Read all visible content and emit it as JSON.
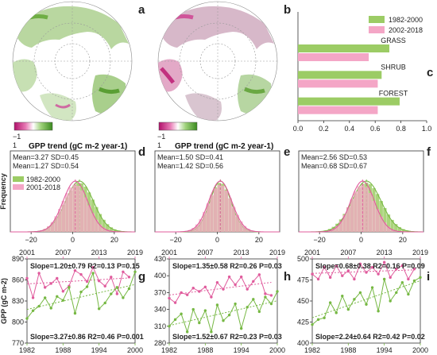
{
  "colors": {
    "green": "#76b843",
    "pink": "#e05c9d",
    "green_fill": "#9ccc65",
    "pink_fill": "#f4a6c6",
    "axis": "#333333"
  },
  "panel_labels": [
    "a",
    "b",
    "c",
    "d",
    "e",
    "f",
    "g",
    "h",
    "i"
  ],
  "maps": {
    "trend_title": "GPP trend (gC m-2 year-1)",
    "colorbar_min": "−1",
    "colorbar_max": "1"
  },
  "chart_data": [
    {
      "id": "c",
      "type": "bar",
      "orientation": "horizontal",
      "categories": [
        "GRASS",
        "SHRUB",
        "FOREST"
      ],
      "series": [
        {
          "name": "1982-2000",
          "values": [
            0.71,
            0.65,
            0.79
          ]
        },
        {
          "name": "2002-2018",
          "values": [
            0.55,
            0.62,
            0.62
          ]
        }
      ],
      "xlim": [
        0,
        1
      ],
      "xticks": [
        "0.0",
        "0.2",
        "0.4",
        "0.6",
        "0.8",
        "1.0"
      ],
      "legend": "top-right"
    },
    {
      "id": "d",
      "type": "area",
      "ylabel": "Frequency",
      "xticks": [
        "−20",
        "0",
        "20"
      ],
      "xlim": [
        -30,
        30
      ],
      "stats": [
        "Mean=3.27 SD=0.45",
        "Mean=1.27 SD=0.54"
      ],
      "series": [
        {
          "name": "1982-2000",
          "mean": 3.27,
          "spread": 7.0
        },
        {
          "name": "2001-2018",
          "mean": 1.27,
          "spread": 6.2
        }
      ],
      "legend": "left"
    },
    {
      "id": "e",
      "type": "area",
      "xticks": [
        "−20",
        "0",
        "20"
      ],
      "xlim": [
        -30,
        30
      ],
      "stats": [
        "Mean=1.50 SD=0.41",
        "Mean=1.42 SD=0.56"
      ],
      "series": [
        {
          "mean": 1.5,
          "spread": 5.3
        },
        {
          "mean": 1.42,
          "spread": 5.8
        }
      ]
    },
    {
      "id": "f",
      "type": "area",
      "xticks": [
        "−20",
        "0",
        "20"
      ],
      "xlim": [
        -30,
        30
      ],
      "stats": [
        "Mean=2.56 SD=0.53",
        "Mean=0.68 SD=0.67"
      ],
      "series": [
        {
          "mean": 2.56,
          "spread": 7.4
        },
        {
          "mean": 0.68,
          "spread": 6.0
        }
      ]
    },
    {
      "id": "g",
      "type": "line",
      "ylabel": "GPP (gC m-2)",
      "ylim": [
        770,
        900
      ],
      "yticks": [
        "770",
        "800",
        "830",
        "860",
        "890"
      ],
      "top_xticks": [
        "2001",
        "2007",
        "2013",
        "2019"
      ],
      "bottom_xticks": [
        "1982",
        "1988",
        "1994",
        "2000"
      ],
      "top_stats": "Slope=1.20±0.79  R2=0.13  P=0.15",
      "bottom_stats": "Slope=3.27±0.86  R2=0.46  P=0.001",
      "series": [
        {
          "x": [
            2001,
            2002,
            2003,
            2004,
            2005,
            2006,
            2007,
            2008,
            2009,
            2010,
            2011,
            2012,
            2013,
            2014,
            2015,
            2016,
            2017,
            2018
          ],
          "y": [
            870,
            840,
            878,
            856,
            862,
            870,
            850,
            858,
            882,
            876,
            865,
            887,
            866,
            858,
            872,
            846,
            880,
            872
          ]
        },
        {
          "x": [
            1982,
            1983,
            1984,
            1985,
            1986,
            1987,
            1988,
            1989,
            1990,
            1991,
            1992,
            1993,
            1994,
            1995,
            1996,
            1997,
            1998,
            1999,
            2000
          ],
          "y": [
            808,
            820,
            827,
            840,
            824,
            842,
            836,
            856,
            816,
            849,
            857,
            878,
            823,
            832,
            846,
            856,
            840,
            854,
            880
          ]
        }
      ]
    },
    {
      "id": "h",
      "type": "line",
      "ylim": [
        280,
        430
      ],
      "yticks": [
        "280",
        "310",
        "340",
        "370",
        "400",
        "430"
      ],
      "top_xticks": [
        "2001",
        "2007",
        "2013",
        "2019"
      ],
      "bottom_xticks": [
        "1982",
        "1988",
        "1994",
        "2000"
      ],
      "top_stats": "Slope=1.35±0.58  R2=0.26  P=0.03",
      "bottom_stats": "Slope=1.52±0.67  R2=0.23  P=0.03",
      "series": [
        {
          "x": [
            2001,
            2002,
            2003,
            2004,
            2005,
            2006,
            2007,
            2008,
            2009,
            2010,
            2011,
            2012,
            2013,
            2014,
            2015,
            2016,
            2017,
            2018
          ],
          "y": [
            360,
            352,
            370,
            366,
            378,
            372,
            380,
            362,
            388,
            376,
            398,
            384,
            398,
            376,
            390,
            402,
            368,
            365
          ]
        },
        {
          "x": [
            1982,
            1983,
            1984,
            1985,
            1986,
            1987,
            1988,
            1989,
            1990,
            1991,
            1992,
            1993,
            1994,
            1995,
            1996,
            1997,
            1998,
            1999,
            2000
          ],
          "y": [
            310,
            322,
            332,
            300,
            340,
            316,
            338,
            300,
            348,
            320,
            330,
            350,
            306,
            344,
            358,
            336,
            362,
            350,
            372
          ]
        }
      ]
    },
    {
      "id": "i",
      "type": "line",
      "ylim": [
        400,
        500
      ],
      "yticks": [
        "400",
        "425",
        "450",
        "475",
        "500"
      ],
      "top_xticks": [
        "2001",
        "2007",
        "2013",
        "2019"
      ],
      "bottom_xticks": [
        "1982",
        "1988",
        "1994",
        "2000"
      ],
      "top_stats": "Slope=0.68±0.38  R2=0.16  P=0.09",
      "bottom_stats": "Slope=2.24±0.64  R2=0.42  P=0.02",
      "series": [
        {
          "x": [
            2001,
            2002,
            2003,
            2004,
            2005,
            2006,
            2007,
            2008,
            2009,
            2010,
            2011,
            2012,
            2013,
            2014,
            2015,
            2016,
            2017,
            2018
          ],
          "y": [
            482,
            476,
            490,
            478,
            492,
            480,
            486,
            476,
            494,
            484,
            490,
            482,
            496,
            478,
            488,
            492,
            476,
            488
          ]
        },
        {
          "x": [
            1982,
            1983,
            1984,
            1985,
            1986,
            1987,
            1988,
            1989,
            1990,
            1991,
            1992,
            1993,
            1994,
            1995,
            1996,
            1997,
            1998,
            1999,
            2000
          ],
          "y": [
            422,
            428,
            430,
            448,
            436,
            456,
            440,
            452,
            460,
            446,
            466,
            438,
            476,
            450,
            460,
            472,
            458,
            474,
            478
          ]
        }
      ]
    }
  ]
}
